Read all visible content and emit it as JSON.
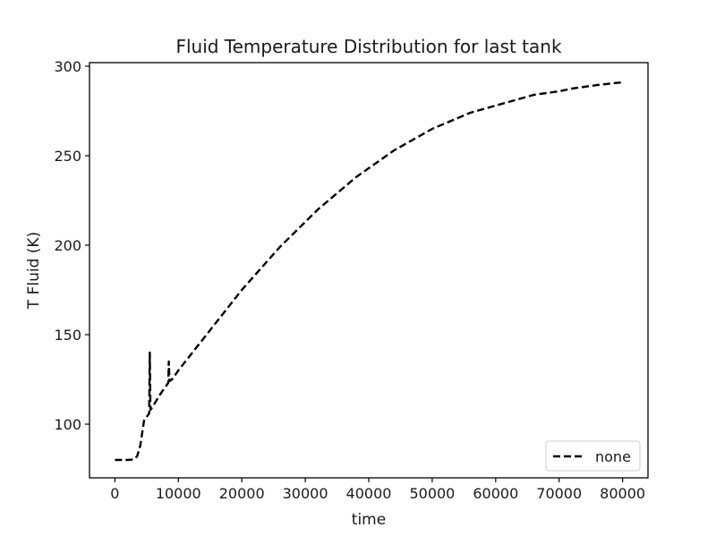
{
  "chart_data": {
    "type": "line",
    "title": "Fluid Temperature Distribution for last tank",
    "xlabel": "time",
    "ylabel": "T Fluid (K)",
    "xlim": [
      -4000,
      84000
    ],
    "ylim": [
      70,
      302
    ],
    "x_ticks": [
      0,
      10000,
      20000,
      30000,
      40000,
      50000,
      60000,
      70000,
      80000
    ],
    "x_tick_labels": [
      "0",
      "10000",
      "20000",
      "30000",
      "40000",
      "50000",
      "60000",
      "70000",
      "80000"
    ],
    "y_ticks": [
      100,
      150,
      200,
      250,
      300
    ],
    "y_tick_labels": [
      "100",
      "150",
      "200",
      "250",
      "300"
    ],
    "grid": false,
    "legend_position": "lower-right",
    "series": [
      {
        "name": "none",
        "color": "#000000",
        "line_style": "dashed",
        "points": [
          [
            0,
            80
          ],
          [
            1000,
            80
          ],
          [
            2000,
            80
          ],
          [
            3000,
            80.3
          ],
          [
            3500,
            82
          ],
          [
            4000,
            88
          ],
          [
            4300,
            95
          ],
          [
            4600,
            102
          ],
          [
            5000,
            104
          ],
          [
            5400,
            106
          ],
          [
            5500,
            140
          ],
          [
            5600,
            108
          ],
          [
            6000,
            110
          ],
          [
            7000,
            116
          ],
          [
            8000,
            121
          ],
          [
            8400,
            123
          ],
          [
            8500,
            135
          ],
          [
            8600,
            124
          ],
          [
            9000,
            125
          ],
          [
            10000,
            130
          ],
          [
            12000,
            139
          ],
          [
            14000,
            148
          ],
          [
            16000,
            157
          ],
          [
            18000,
            166
          ],
          [
            20000,
            175
          ],
          [
            22000,
            183
          ],
          [
            24000,
            191
          ],
          [
            26000,
            199
          ],
          [
            28000,
            206
          ],
          [
            30000,
            213
          ],
          [
            32000,
            220
          ],
          [
            34000,
            226
          ],
          [
            36000,
            232
          ],
          [
            38000,
            238
          ],
          [
            40000,
            243
          ],
          [
            42000,
            248
          ],
          [
            44000,
            253
          ],
          [
            46000,
            257
          ],
          [
            48000,
            261
          ],
          [
            50000,
            265
          ],
          [
            52000,
            268
          ],
          [
            54000,
            271
          ],
          [
            56000,
            274
          ],
          [
            58000,
            276
          ],
          [
            60000,
            278
          ],
          [
            62000,
            280
          ],
          [
            64000,
            282
          ],
          [
            66000,
            284
          ],
          [
            68000,
            285
          ],
          [
            70000,
            286
          ],
          [
            72000,
            287.5
          ],
          [
            74000,
            288.5
          ],
          [
            76000,
            289.5
          ],
          [
            78000,
            290.3
          ],
          [
            80000,
            291
          ]
        ]
      }
    ]
  }
}
